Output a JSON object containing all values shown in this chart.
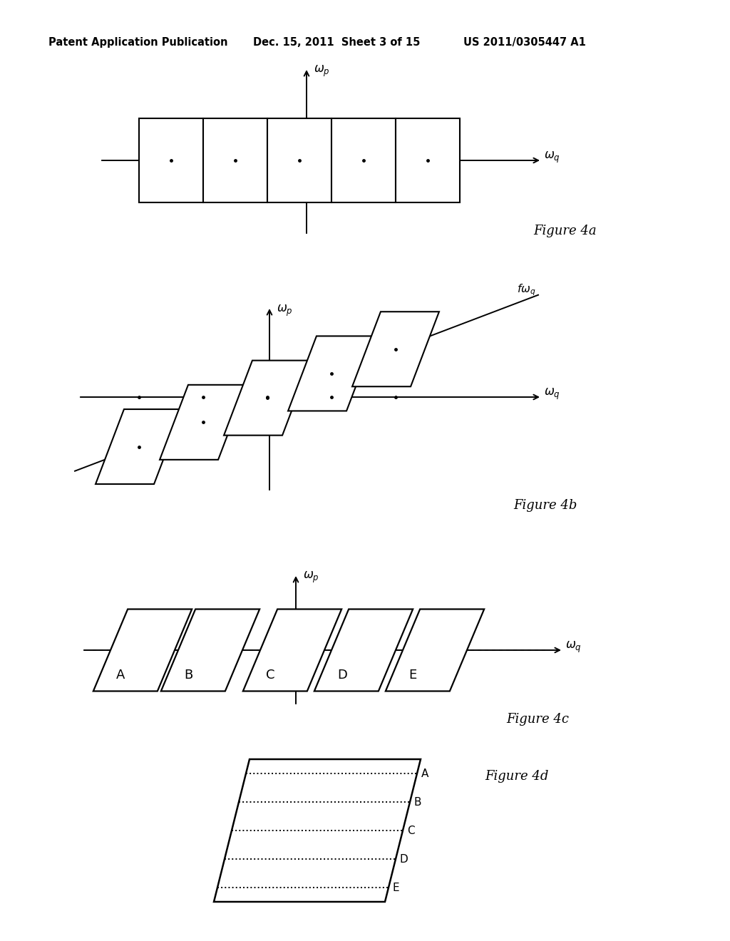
{
  "bg_color": "#ffffff",
  "text_color": "#000000",
  "header_left": "Patent Application Publication",
  "header_mid": "Dec. 15, 2011  Sheet 3 of 15",
  "header_right": "US 2011/0305447 A1",
  "fig4a_caption": "Figure 4a",
  "fig4b_caption": "Figure 4b",
  "fig4c_caption": "Figure 4c",
  "fig4d_caption": "Figure 4d"
}
